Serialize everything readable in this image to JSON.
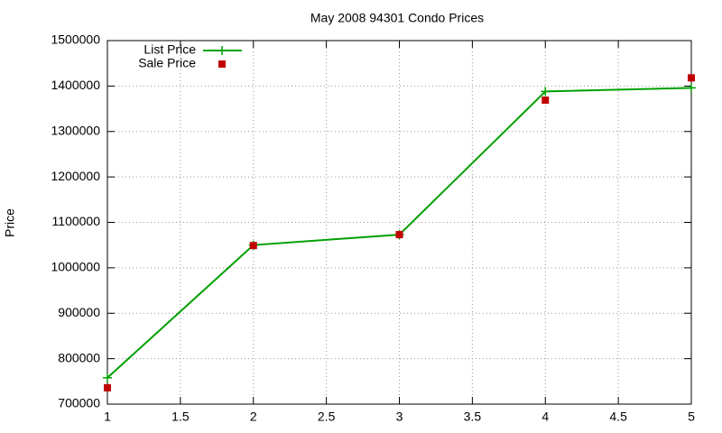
{
  "chart_data": {
    "type": "line",
    "title": "May 2008 94301 Condo Prices",
    "y_label": "Price",
    "x": [
      1,
      2,
      3,
      4,
      5
    ],
    "series": [
      {
        "name": "List Price",
        "color": "#00a000",
        "mode": "lines+markers",
        "marker": "plus",
        "values": [
          758000,
          1050000,
          1073000,
          1388000,
          1396000
        ]
      },
      {
        "name": "Sale Price",
        "color": "#c00000",
        "mode": "markers",
        "marker": "square",
        "values": [
          736000,
          1049000,
          1073000,
          1369000,
          1418000
        ]
      }
    ],
    "xlim": [
      1,
      5
    ],
    "xticks": [
      1,
      1.5,
      2,
      2.5,
      3,
      3.5,
      4,
      4.5,
      5
    ],
    "ylim": [
      700000,
      1500000
    ],
    "yticks": [
      700000,
      800000,
      900000,
      1000000,
      1100000,
      1200000,
      1300000,
      1400000,
      1500000
    ],
    "grid": true,
    "legend": "top-left"
  }
}
